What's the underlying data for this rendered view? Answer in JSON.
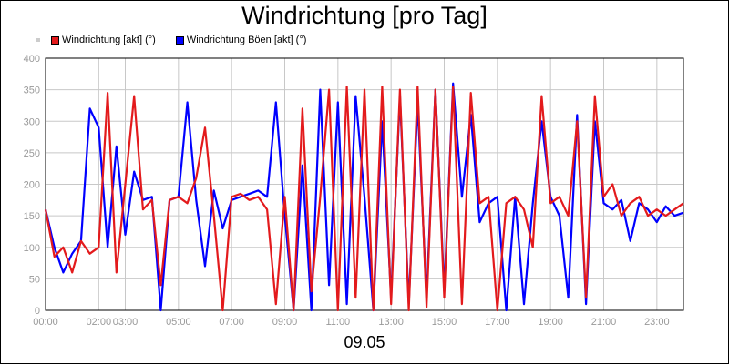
{
  "chart_data": {
    "type": "line",
    "title": "Windrichtung [pro Tag]",
    "xlabel": "09.05",
    "ylabel": "",
    "ylim": [
      0,
      400
    ],
    "yticks": [
      0,
      50,
      100,
      150,
      200,
      250,
      300,
      350,
      400
    ],
    "xlim": [
      "00:00",
      "24:00"
    ],
    "xtick_labels": [
      "00:00",
      "02:00",
      "03:00",
      "05:00",
      "07:00",
      "09:00",
      "11:00",
      "13:00",
      "15:00",
      "17:00",
      "19:00",
      "21:00",
      "23:00"
    ],
    "grid": true,
    "legend_position": "top-left",
    "x": [
      "00:00",
      "00:20",
      "00:40",
      "01:00",
      "01:20",
      "01:40",
      "02:00",
      "02:20",
      "02:40",
      "03:00",
      "03:20",
      "03:40",
      "04:00",
      "04:20",
      "04:40",
      "05:00",
      "05:20",
      "05:40",
      "06:00",
      "06:20",
      "06:40",
      "07:00",
      "07:20",
      "07:40",
      "08:00",
      "08:20",
      "08:40",
      "09:00",
      "09:20",
      "09:40",
      "10:00",
      "10:20",
      "10:40",
      "11:00",
      "11:20",
      "11:40",
      "12:00",
      "12:20",
      "12:40",
      "13:00",
      "13:20",
      "13:40",
      "14:00",
      "14:20",
      "14:40",
      "15:00",
      "15:20",
      "15:40",
      "16:00",
      "16:20",
      "16:40",
      "17:00",
      "17:20",
      "17:40",
      "18:00",
      "18:20",
      "18:40",
      "19:00",
      "19:20",
      "19:40",
      "20:00",
      "20:20",
      "20:40",
      "21:00",
      "21:20",
      "21:40",
      "22:00",
      "22:20",
      "22:40",
      "23:00",
      "23:20",
      "23:40",
      "24:00"
    ],
    "series": [
      {
        "name": "Windrichtung [akt] (°)",
        "color": "#e31a1c",
        "values": [
          160,
          85,
          100,
          60,
          110,
          90,
          100,
          345,
          60,
          200,
          340,
          160,
          175,
          40,
          175,
          180,
          170,
          210,
          290,
          150,
          0,
          180,
          185,
          175,
          180,
          160,
          10,
          180,
          0,
          320,
          30,
          180,
          350,
          0,
          355,
          20,
          350,
          0,
          355,
          10,
          350,
          0,
          355,
          5,
          350,
          20,
          355,
          10,
          345,
          170,
          180,
          0,
          170,
          180,
          160,
          100,
          340,
          170,
          180,
          150,
          300,
          20,
          340,
          180,
          200,
          150,
          170,
          180,
          150,
          160,
          150,
          160,
          170
        ]
      },
      {
        "name": "Windrichtung Böen [akt] (°)",
        "color": "#0000ff",
        "values": [
          160,
          100,
          60,
          90,
          110,
          320,
          290,
          100,
          260,
          120,
          220,
          175,
          180,
          0,
          175,
          180,
          330,
          175,
          70,
          190,
          130,
          175,
          180,
          185,
          190,
          180,
          330,
          150,
          0,
          230,
          0,
          350,
          40,
          330,
          10,
          340,
          180,
          0,
          300,
          20,
          340,
          10,
          330,
          20,
          350,
          30,
          360,
          180,
          310,
          140,
          170,
          180,
          0,
          180,
          10,
          170,
          300,
          180,
          150,
          20,
          310,
          10,
          300,
          170,
          160,
          175,
          110,
          170,
          160,
          140,
          165,
          150,
          155
        ]
      }
    ]
  }
}
